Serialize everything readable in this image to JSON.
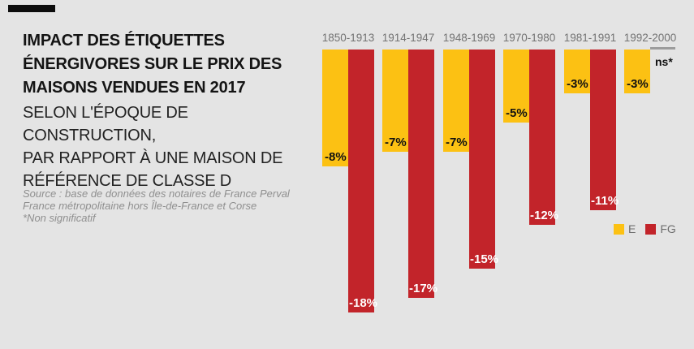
{
  "title": {
    "lines": [
      "IMPACT DES ÉTIQUETTES",
      "ÉNERGIVORES SUR LE PRIX DES",
      "MAISONS VENDUES EN 2017"
    ]
  },
  "subtitle": {
    "lines": [
      "SELON L'ÉPOQUE DE CONSTRUCTION,",
      "PAR RAPPORT À UNE MAISON DE",
      "RÉFÉRENCE DE CLASSE D"
    ]
  },
  "source": {
    "lines": [
      "Source : base de données des notaires de France Perval",
      "France métropolitaine hors Île-de-France et Corse",
      "*Non significatif"
    ]
  },
  "legend": [
    {
      "label": "E",
      "color": "#fcc113"
    },
    {
      "label": "FG",
      "color": "#c2242a"
    }
  ],
  "colors": {
    "background": "#e4e4e4",
    "E": "#fcc113",
    "FG": "#c2242a",
    "ns_line": "#9c9c9c",
    "category_label": "#737373",
    "title": "#141414",
    "source": "#8f8f8f"
  },
  "chart_data": {
    "type": "bar",
    "orientation": "vertical",
    "unit": "%",
    "title": "Impact des étiquettes énergivores sur le prix des maisons vendues en 2017",
    "categories": [
      "1850-1913",
      "1914-1947",
      "1948-1969",
      "1970-1980",
      "1981-1991",
      "1992-2000"
    ],
    "series": [
      {
        "name": "E",
        "values": [
          -8,
          -7,
          -7,
          -5,
          -3,
          -3
        ],
        "labels": [
          "-8%",
          "-7%",
          "-7%",
          "-5%",
          "-3%",
          "-3%"
        ]
      },
      {
        "name": "FG",
        "values": [
          -18,
          -17,
          -15,
          -12,
          -11,
          null
        ],
        "labels": [
          "-18%",
          "-17%",
          "-15%",
          "-12%",
          "-11%",
          "ns*"
        ]
      }
    ],
    "not_significant_label": "ns*",
    "ylim": [
      -20,
      0
    ],
    "legend_position": "right-middle",
    "grid": false
  }
}
